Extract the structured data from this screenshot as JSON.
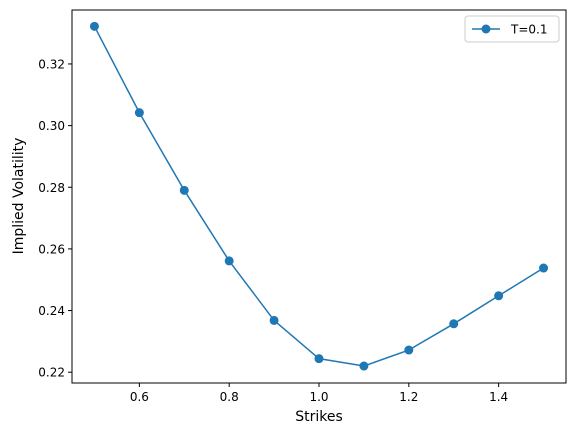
{
  "chart_data": {
    "type": "line",
    "xlabel": "Strikes",
    "ylabel": "Implied Volatility",
    "xlim": [
      0.45,
      1.55
    ],
    "ylim": [
      0.2165,
      0.3375
    ],
    "xticks": [
      0.6,
      0.8,
      1.0,
      1.2,
      1.4
    ],
    "xtick_labels": [
      "0.6",
      "0.8",
      "1.0",
      "1.2",
      "1.4"
    ],
    "yticks": [
      0.22,
      0.24,
      0.26,
      0.28,
      0.3,
      0.32
    ],
    "ytick_labels": [
      "0.22",
      "0.24",
      "0.26",
      "0.28",
      "0.30",
      "0.32"
    ],
    "grid": false,
    "legend_position": "top-right",
    "series": [
      {
        "name": "T=0.1",
        "color": "#1f77b4",
        "marker": "circle",
        "x": [
          0.5,
          0.6,
          0.7,
          0.8,
          0.9,
          1.0,
          1.1,
          1.2,
          1.3,
          1.4,
          1.5
        ],
        "y": [
          0.3322,
          0.3042,
          0.279,
          0.2561,
          0.2368,
          0.2244,
          0.222,
          0.2272,
          0.2357,
          0.2448,
          0.2538
        ]
      }
    ]
  }
}
